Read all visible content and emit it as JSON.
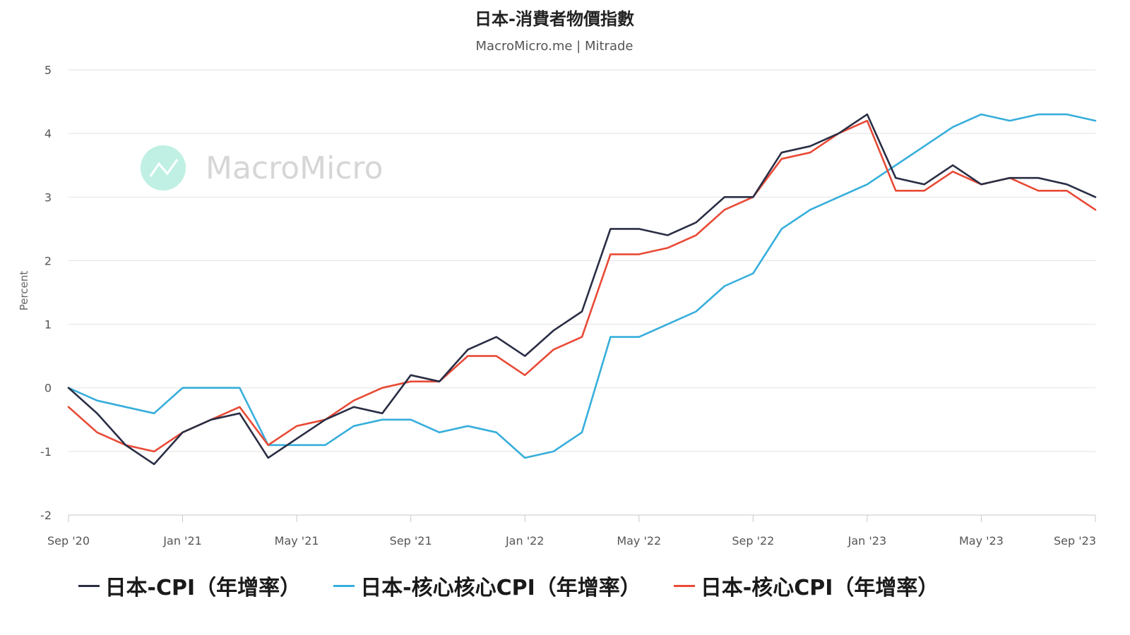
{
  "title": "日本-消費者物價指數",
  "subtitle": "MacroMicro.me | Mitrade",
  "watermark": "MacroMicro",
  "colors": {
    "cpi": "#2a2e45",
    "core_core": "#36aedb",
    "core": "#e84a36",
    "grid": "#e2e2e2",
    "watermark_logo": "#bff0e3"
  },
  "chart_data": {
    "type": "line",
    "title": "日本-消費者物價指數",
    "subtitle": "MacroMicro.me | Mitrade",
    "ylabel": "Percent",
    "xlabel": "",
    "ylim": [
      -2,
      5
    ],
    "yticks": [
      "5",
      "4",
      "3",
      "2",
      "1",
      "0",
      "-1",
      "-2"
    ],
    "xtick_labels": [
      "Sep '20",
      "Jan '21",
      "May '21",
      "Sep '21",
      "Jan '22",
      "May '22",
      "Sep '22",
      "Jan '23",
      "May '23",
      "Sep '23"
    ],
    "x": [
      "2020-09",
      "2020-10",
      "2020-11",
      "2020-12",
      "2021-01",
      "2021-02",
      "2021-03",
      "2021-04",
      "2021-05",
      "2021-06",
      "2021-07",
      "2021-08",
      "2021-09",
      "2021-10",
      "2021-11",
      "2021-12",
      "2022-01",
      "2022-02",
      "2022-03",
      "2022-04",
      "2022-05",
      "2022-06",
      "2022-07",
      "2022-08",
      "2022-09",
      "2022-10",
      "2022-11",
      "2022-12",
      "2023-01",
      "2023-02",
      "2023-03",
      "2023-04",
      "2023-05",
      "2023-06",
      "2023-07",
      "2023-08",
      "2023-09"
    ],
    "grid": true,
    "legend_position": "bottom",
    "series": [
      {
        "name": "日本-CPI（年增率）",
        "values": [
          0.0,
          -0.4,
          -0.9,
          -1.2,
          -0.7,
          -0.5,
          -0.4,
          -1.1,
          -0.8,
          -0.5,
          -0.3,
          -0.4,
          0.2,
          0.1,
          0.6,
          0.8,
          0.5,
          0.9,
          1.2,
          2.5,
          2.5,
          2.4,
          2.6,
          3.0,
          3.0,
          3.7,
          3.8,
          4.0,
          4.3,
          3.3,
          3.2,
          3.5,
          3.2,
          3.3,
          3.3,
          3.2,
          3.0
        ]
      },
      {
        "name": "日本-核心核心CPI（年增率）",
        "values": [
          0.0,
          -0.2,
          -0.3,
          -0.4,
          0.0,
          0.0,
          0.0,
          -0.9,
          -0.9,
          -0.9,
          -0.6,
          -0.5,
          -0.5,
          -0.7,
          -0.6,
          -0.7,
          -1.1,
          -1.0,
          -0.7,
          0.8,
          0.8,
          1.0,
          1.2,
          1.6,
          1.8,
          2.5,
          2.8,
          3.0,
          3.2,
          3.5,
          3.8,
          4.1,
          4.3,
          4.2,
          4.3,
          4.3,
          4.2
        ]
      },
      {
        "name": "日本-核心CPI（年增率）",
        "values": [
          -0.3,
          -0.7,
          -0.9,
          -1.0,
          -0.7,
          -0.5,
          -0.3,
          -0.9,
          -0.6,
          -0.5,
          -0.2,
          0.0,
          0.1,
          0.1,
          0.5,
          0.5,
          0.2,
          0.6,
          0.8,
          2.1,
          2.1,
          2.2,
          2.4,
          2.8,
          3.0,
          3.6,
          3.7,
          4.0,
          4.2,
          3.1,
          3.1,
          3.4,
          3.2,
          3.3,
          3.1,
          3.1,
          2.8
        ]
      }
    ]
  }
}
